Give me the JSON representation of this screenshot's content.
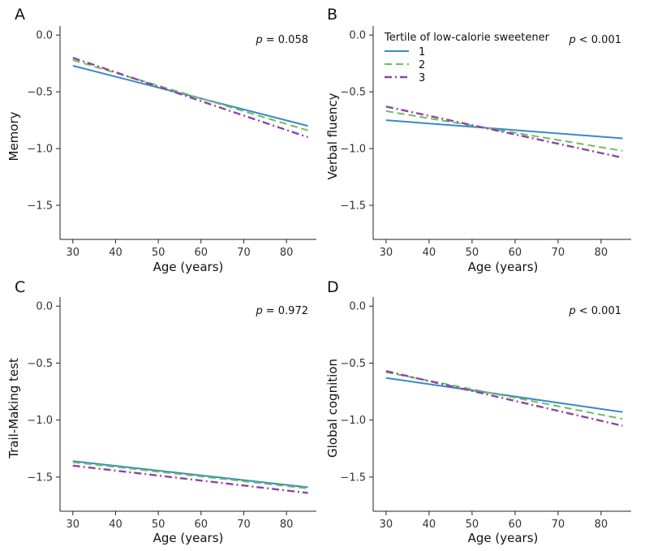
{
  "chart_data": [
    {
      "panel": "A",
      "type": "line",
      "ylabel": "Memory",
      "xlabel": "Age (years)",
      "p_label": "p",
      "p_value": "= 0.058",
      "xlim": [
        27,
        87
      ],
      "ylim": [
        -1.8,
        0.08
      ],
      "xticks": [
        30,
        40,
        50,
        60,
        70,
        80
      ],
      "yticks": [
        0.0,
        -0.5,
        -1.0,
        -1.5
      ],
      "ytick_labels": [
        "0.0",
        "-0.5",
        "-1.0",
        "-1.5"
      ],
      "series": [
        {
          "tertile": "1",
          "x": [
            30,
            85
          ],
          "y": [
            -0.27,
            -0.8
          ]
        },
        {
          "tertile": "2",
          "x": [
            30,
            85
          ],
          "y": [
            -0.22,
            -0.84
          ]
        },
        {
          "tertile": "3",
          "x": [
            30,
            85
          ],
          "y": [
            -0.2,
            -0.9
          ]
        }
      ]
    },
    {
      "panel": "B",
      "type": "line",
      "ylabel": "Verbal fluency",
      "xlabel": "Age (years)",
      "p_label": "p",
      "p_value": "< 0.001",
      "xlim": [
        27,
        87
      ],
      "ylim": [
        -1.8,
        0.08
      ],
      "xticks": [
        30,
        40,
        50,
        60,
        70,
        80
      ],
      "yticks": [
        0.0,
        -0.5,
        -1.0,
        -1.5
      ],
      "ytick_labels": [
        "0.0",
        "-0.5",
        "-1.0",
        "-1.5"
      ],
      "legend": {
        "title": "Tertile of low-calorie sweetener",
        "position": "top-left",
        "entries": [
          "1",
          "2",
          "3"
        ]
      },
      "series": [
        {
          "tertile": "1",
          "x": [
            30,
            85
          ],
          "y": [
            -0.75,
            -0.91
          ]
        },
        {
          "tertile": "2",
          "x": [
            30,
            85
          ],
          "y": [
            -0.67,
            -1.02
          ]
        },
        {
          "tertile": "3",
          "x": [
            30,
            85
          ],
          "y": [
            -0.63,
            -1.08
          ]
        }
      ]
    },
    {
      "panel": "C",
      "type": "line",
      "ylabel": "Trail-Making test",
      "xlabel": "Age (years)",
      "p_label": "p",
      "p_value": "= 0.972",
      "xlim": [
        27,
        87
      ],
      "ylim": [
        -1.8,
        0.08
      ],
      "xticks": [
        30,
        40,
        50,
        60,
        70,
        80
      ],
      "yticks": [
        0.0,
        -0.5,
        -1.0,
        -1.5
      ],
      "ytick_labels": [
        "0.0",
        "-0.5",
        "-1.0",
        "-1.5"
      ],
      "series": [
        {
          "tertile": "1",
          "x": [
            30,
            85
          ],
          "y": [
            -1.36,
            -1.59
          ]
        },
        {
          "tertile": "2",
          "x": [
            30,
            85
          ],
          "y": [
            -1.37,
            -1.6
          ]
        },
        {
          "tertile": "3",
          "x": [
            30,
            85
          ],
          "y": [
            -1.4,
            -1.64
          ]
        }
      ]
    },
    {
      "panel": "D",
      "type": "line",
      "ylabel": "Global cognition",
      "xlabel": "Age (years)",
      "p_label": "p",
      "p_value": "< 0.001",
      "xlim": [
        27,
        87
      ],
      "ylim": [
        -1.8,
        0.08
      ],
      "xticks": [
        30,
        40,
        50,
        60,
        70,
        80
      ],
      "yticks": [
        0.0,
        -0.5,
        -1.0,
        -1.5
      ],
      "ytick_labels": [
        "0.0",
        "-0.5",
        "-1.0",
        "-1.5"
      ],
      "series": [
        {
          "tertile": "1",
          "x": [
            30,
            85
          ],
          "y": [
            -0.63,
            -0.93
          ]
        },
        {
          "tertile": "2",
          "x": [
            30,
            85
          ],
          "y": [
            -0.58,
            -0.99
          ]
        },
        {
          "tertile": "3",
          "x": [
            30,
            85
          ],
          "y": [
            -0.57,
            -1.05
          ]
        }
      ]
    }
  ],
  "series_styles": [
    {
      "tertile": "1",
      "color": "#3a88c8",
      "dash": "solid"
    },
    {
      "tertile": "2",
      "color": "#6cbf5a",
      "dash": "dashed"
    },
    {
      "tertile": "3",
      "color": "#8e44a6",
      "dash": "dash-dot"
    }
  ],
  "grid": false
}
